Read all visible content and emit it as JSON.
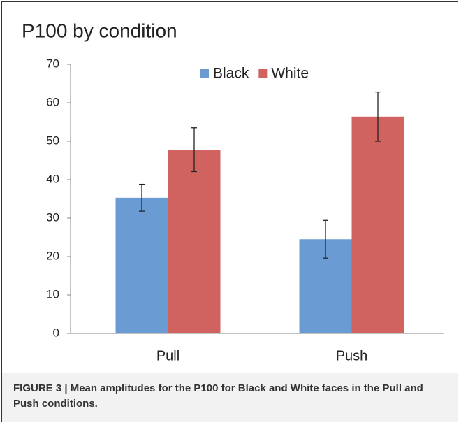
{
  "chart_data": {
    "type": "bar",
    "title": "P100 by condition",
    "categories": [
      "Pull",
      "Push"
    ],
    "series": [
      {
        "name": "Black",
        "color": "#6b9bd3",
        "values": [
          35.3,
          24.5
        ],
        "errors": [
          3.5,
          4.9
        ]
      },
      {
        "name": "White",
        "color": "#d0625f",
        "values": [
          47.8,
          56.4
        ],
        "errors": [
          5.7,
          6.4
        ]
      }
    ],
    "ylim": [
      0,
      70
    ],
    "yticks": [
      0,
      10,
      20,
      30,
      40,
      50,
      60,
      70
    ],
    "grid": false,
    "legend": "top"
  },
  "caption": "FIGURE 3 | Mean amplitudes for the P100 for Black and White faces in the Pull and Push conditions."
}
